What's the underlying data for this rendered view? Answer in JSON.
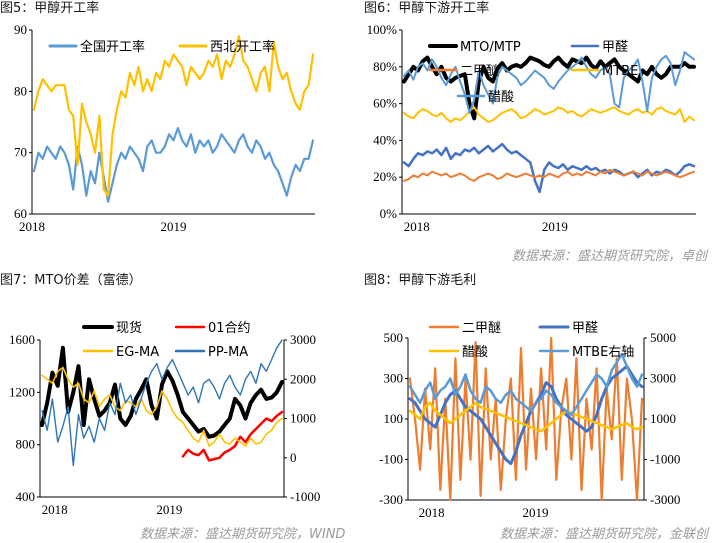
{
  "panels": [
    {
      "title": "图5：甲醇开工率",
      "source": "",
      "chart_data": {
        "type": "line",
        "x_ticks": [
          "2018",
          "2019"
        ],
        "ylim": [
          60,
          90
        ],
        "y_ticks": [
          60,
          70,
          80,
          90
        ],
        "legend_position": "top",
        "series": [
          {
            "name": "全国开工率",
            "color": "#5b9bd5",
            "values": [
              67,
              70,
              69,
              71,
              70,
              69,
              71,
              70,
              68,
              64,
              71,
              68,
              63,
              67,
              65,
              70,
              66,
              62,
              65,
              68,
              70,
              69,
              71,
              70,
              69,
              67,
              71,
              72,
              70,
              70,
              71,
              73,
              72,
              74,
              72,
              71,
              73,
              70,
              72,
              71,
              72,
              70,
              71,
              73,
              72,
              71,
              70,
              72,
              73,
              71,
              70,
              72,
              71,
              69,
              70,
              68,
              67,
              65,
              63,
              66,
              68,
              67,
              69,
              69,
              72
            ]
          },
          {
            "name": "西北开工率",
            "color": "#ffc000",
            "values": [
              77,
              80,
              82,
              81,
              80,
              81,
              81,
              81,
              77,
              76,
              68,
              78,
              75,
              73,
              70,
              76,
              64,
              63,
              73,
              77,
              80,
              79,
              83,
              81,
              84,
              80,
              82,
              80,
              83,
              82,
              85,
              84,
              86,
              85,
              84,
              81,
              84,
              83,
              82,
              83,
              85,
              84,
              86,
              82,
              85,
              84,
              86,
              89,
              85,
              84,
              82,
              80,
              83,
              84,
              80,
              88,
              84,
              82,
              83,
              80,
              78,
              77,
              80,
              81,
              86
            ]
          }
        ]
      }
    },
    {
      "title": "图6：甲醇下游开工率",
      "source": "数据来源：盛达期货研究院，卓创",
      "chart_data": {
        "type": "line",
        "x_ticks": [
          "2018",
          "2019"
        ],
        "ylim": [
          0,
          100
        ],
        "y_ticks": [
          "0%",
          "20%",
          "40%",
          "60%",
          "80%",
          "100%"
        ],
        "legend_position": "top",
        "series": [
          {
            "name": "MTO/MTP",
            "color": "#000000",
            "values": [
              72,
              76,
              80,
              78,
              83,
              85,
              80,
              76,
              80,
              74,
              72,
              74,
              75,
              76,
              60,
              52,
              72,
              80,
              74,
              72,
              79,
              82,
              78,
              80,
              81,
              80,
              82,
              85,
              84,
              83,
              81,
              80,
              83,
              85,
              82,
              80,
              84,
              83,
              82,
              85,
              81,
              79,
              83,
              80,
              82,
              84,
              80,
              78,
              76,
              74,
              72,
              78,
              76,
              80,
              76,
              74,
              76,
              80,
              80,
              80,
              82,
              80,
              80
            ]
          },
          {
            "name": "甲醛",
            "color": "#4472c4",
            "values": [
              28,
              26,
              30,
              33,
              32,
              34,
              33,
              35,
              32,
              36,
              30,
              33,
              32,
              35,
              34,
              36,
              33,
              35,
              37,
              34,
              36,
              38,
              35,
              33,
              34,
              32,
              30,
              28,
              18,
              12,
              24,
              28,
              26,
              25,
              27,
              24,
              26,
              25,
              24,
              26,
              24,
              25,
              23,
              24,
              22,
              24,
              23,
              21,
              22,
              23,
              20,
              22,
              24,
              21,
              23,
              22,
              24,
              23,
              21,
              23,
              26,
              27,
              26
            ]
          },
          {
            "name": "二甲醚",
            "color": "#ed7d31",
            "values": [
              18,
              19,
              21,
              20,
              22,
              21,
              23,
              22,
              21,
              22,
              20,
              21,
              22,
              21,
              19,
              18,
              20,
              21,
              22,
              21,
              19,
              20,
              22,
              21,
              20,
              21,
              22,
              21,
              20,
              21,
              20,
              22,
              21,
              20,
              22,
              23,
              21,
              22,
              21,
              23,
              22,
              21,
              23,
              22,
              24,
              23,
              22,
              21,
              22,
              23,
              22,
              21,
              23,
              22,
              21,
              22,
              23,
              22,
              21,
              20,
              21,
              22,
              23
            ]
          },
          {
            "name": "MTBE",
            "color": "#ffc000",
            "values": [
              55,
              53,
              52,
              55,
              57,
              56,
              54,
              53,
              55,
              52,
              50,
              52,
              51,
              53,
              56,
              58,
              54,
              52,
              50,
              51,
              53,
              55,
              56,
              57,
              55,
              52,
              53,
              55,
              57,
              56,
              54,
              55,
              56,
              58,
              57,
              55,
              56,
              54,
              53,
              55,
              57,
              56,
              55,
              56,
              57,
              58,
              56,
              55,
              54,
              56,
              57,
              55,
              56,
              54,
              57,
              58,
              56,
              55,
              54,
              57,
              50,
              53,
              51
            ]
          },
          {
            "name": "醋酸",
            "color": "#5b9bd5",
            "values": [
              75,
              78,
              73,
              80,
              82,
              78,
              84,
              80,
              74,
              70,
              76,
              80,
              72,
              65,
              55,
              62,
              78,
              70,
              65,
              60,
              75,
              80,
              78,
              76,
              74,
              70,
              72,
              75,
              78,
              76,
              74,
              70,
              68,
              72,
              75,
              78,
              80,
              82,
              85,
              80,
              76,
              74,
              78,
              80,
              76,
              60,
              58,
              74,
              78,
              80,
              84,
              72,
              56,
              74,
              80,
              84,
              86,
              82,
              70,
              78,
              88,
              86,
              84
            ]
          }
        ]
      }
    },
    {
      "title": "图7：MTO价差（富德）",
      "source": "数据来源：盛达期货研究院，WIND",
      "chart_data": {
        "type": "line",
        "x_ticks": [
          "2018",
          "2019"
        ],
        "ylim": [
          400,
          1600
        ],
        "y_ticks": [
          400,
          800,
          1200,
          1600
        ],
        "y2lim": [
          -1000,
          3000
        ],
        "y2_ticks": [
          -1000,
          0,
          1000,
          2000,
          3000
        ],
        "legend_position": "top",
        "series": [
          {
            "name": "现货",
            "color": "#000000",
            "axis": "left",
            "values": [
              950,
              1120,
              1350,
              1250,
              1540,
              1050,
              1200,
              1400,
              950,
              1300,
              1150,
              1020,
              1060,
              1120,
              1260,
              1000,
              950,
              1020,
              1150,
              1220,
              1300,
              1100,
              1000,
              1260,
              1360,
              1290,
              1180,
              1050,
              1000,
              950,
              900,
              920,
              860,
              870,
              900,
              950,
              1000,
              1150,
              1100,
              1000,
              1120,
              1180,
              1220,
              1150,
              1160,
              1200,
              1280
            ]
          },
          {
            "name": "01合约",
            "color": "#ff0000",
            "axis": "left",
            "values": [
              null,
              null,
              null,
              null,
              null,
              null,
              null,
              null,
              null,
              null,
              null,
              null,
              null,
              null,
              null,
              null,
              null,
              null,
              null,
              null,
              null,
              null,
              null,
              null,
              null,
              null,
              null,
              710,
              760,
              730,
              720,
              760,
              680,
              690,
              700,
              740,
              760,
              790,
              860,
              820,
              880,
              920,
              960,
              1000,
              980,
              1020,
              1050
            ]
          },
          {
            "name": "EG-MA",
            "color": "#ffc000",
            "axis": "right",
            "values": [
              2100,
              2000,
              1900,
              2200,
              2300,
              2000,
              1800,
              1900,
              1500,
              1400,
              1700,
              1300,
              1500,
              1600,
              1300,
              1200,
              1450,
              1400,
              1300,
              1500,
              1200,
              1100,
              1300,
              1700,
              1500,
              1200,
              1000,
              900,
              700,
              500,
              400,
              700,
              300,
              400,
              600,
              400,
              350,
              500,
              400,
              300,
              500,
              350,
              400,
              600,
              700,
              900,
              1000
            ]
          },
          {
            "name": "PP-MA",
            "color": "#2e75b6",
            "axis": "right",
            "values": [
              1200,
              700,
              1500,
              400,
              800,
              1300,
              -200,
              1100,
              500,
              800,
              400,
              1000,
              700,
              1400,
              1100,
              1900,
              1400,
              1600,
              1100,
              1500,
              1900,
              2200,
              2400,
              2000,
              2300,
              2500,
              2200,
              1900,
              1600,
              1800,
              1400,
              1900,
              2000,
              1800,
              1500,
              1900,
              2100,
              1800,
              1600,
              2000,
              2200,
              1900,
              2400,
              2200,
              2500,
              2800,
              3000
            ]
          }
        ]
      }
    },
    {
      "title": "图8：甲醇下游毛利",
      "source": "数据来源：盛达期货研究院，金联创",
      "chart_data": {
        "type": "line",
        "x_ticks": [
          "2018",
          "2019"
        ],
        "ylim": [
          -300,
          500
        ],
        "y_ticks": [
          -300,
          -100,
          100,
          300,
          500
        ],
        "y2lim": [
          -3000,
          5000
        ],
        "y2_ticks": [
          -3000,
          -1000,
          1000,
          3000,
          5000
        ],
        "legend_position": "top",
        "series": [
          {
            "name": "二甲醚",
            "color": "#ed7d31",
            "axis": "left",
            "values": [
              300,
              100,
              -150,
              250,
              -50,
              350,
              -250,
              200,
              -300,
              400,
              -200,
              300,
              -100,
              480,
              -280,
              350,
              -100,
              200,
              -250,
              100,
              300,
              -200,
              450,
              -150,
              250,
              -100,
              350,
              -50,
              500,
              -200,
              150,
              300,
              -100,
              400,
              -250,
              200,
              -50,
              350,
              -300,
              250,
              0,
              400,
              -200,
              300,
              100,
              -300,
              200
            ]
          },
          {
            "name": "甲醛",
            "color": "#4472c4",
            "axis": "left",
            "values": [
              200,
              180,
              140,
              100,
              80,
              60,
              120,
              180,
              220,
              240,
              200,
              160,
              140,
              120,
              100,
              60,
              20,
              -20,
              -60,
              -100,
              -120,
              -60,
              20,
              80,
              140,
              180,
              220,
              280,
              260,
              200,
              160,
              120,
              100,
              80,
              60,
              40,
              60,
              120,
              200,
              260,
              300,
              320,
              340,
              360,
              320,
              280,
              260
            ]
          },
          {
            "name": "醋酸",
            "color": "#ffc000",
            "axis": "left",
            "values": [
              140,
              120,
              100,
              160,
              180,
              140,
              120,
              100,
              80,
              100,
              120,
              140,
              160,
              180,
              160,
              150,
              140,
              130,
              120,
              110,
              100,
              90,
              80,
              70,
              60,
              50,
              40,
              60,
              80,
              100,
              120,
              140,
              130,
              120,
              110,
              100,
              90,
              80,
              70,
              60,
              50,
              60,
              70,
              80,
              60,
              50,
              60
            ]
          },
          {
            "name": "MTBE右轴",
            "color": "#5b9bd5",
            "axis": "right",
            "values": [
              2600,
              2200,
              1800,
              2400,
              2800,
              2000,
              2400,
              2600,
              3000,
              2200,
              2600,
              3200,
              2400,
              2000,
              1800,
              2600,
              2400,
              2000,
              1800,
              2200,
              2400,
              2000,
              1800,
              1600,
              1400,
              1800,
              2000,
              2400,
              2200,
              1800,
              1600,
              1400,
              1200,
              1600,
              2000,
              2400,
              2800,
              3200,
              3000,
              2600,
              3400,
              3800,
              4200,
              3600,
              3000,
              2600,
              3200
            ]
          }
        ]
      }
    }
  ]
}
